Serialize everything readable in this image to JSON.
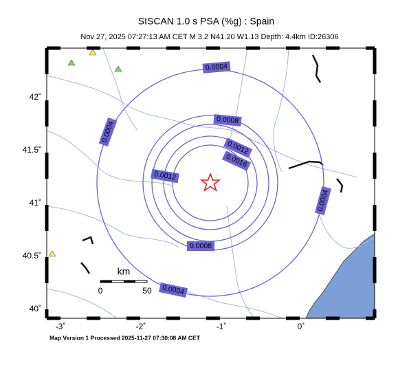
{
  "header": {
    "title": "SISCAN 1.0 s PSA (%g) : Spain",
    "subtitle": "Nov 27, 2025 07:27:13 AM CET   M 3.2   N41.20 W1.13   Depth: 4.4km   ID:26306"
  },
  "contour_labels": [
    "0.0004",
    "0.0004",
    "0.0004",
    "0.0004",
    "0.0008",
    "0.0008",
    "0.0012",
    "0.0012",
    "0.0016"
  ],
  "scale_bar": {
    "unit": "km",
    "start": "0",
    "end": "50"
  },
  "axes": {
    "lat": [
      "42˚",
      "41.5˚",
      "41˚",
      "40.5˚",
      "40˚"
    ],
    "lon": [
      "-3˚",
      "-2˚",
      "-1˚",
      "0˚"
    ]
  },
  "footer": "Map Version 1 Processed 2025-11-27 07:30:08 AM CET"
}
